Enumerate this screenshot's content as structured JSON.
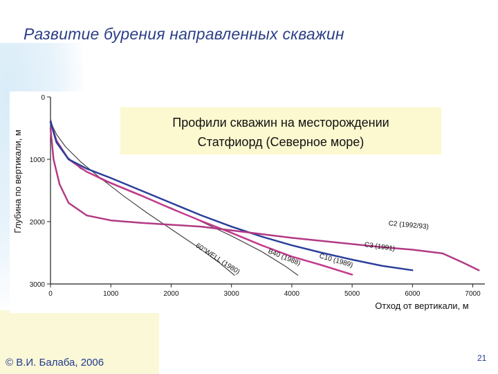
{
  "slide": {
    "title": "Развитие бурения направленных скважин",
    "footer": "© В.И. Балаба, 2006",
    "page_number": "21"
  },
  "chart_data": {
    "type": "line",
    "title": "Профили скважин на месторождении Статфиорд (Северное море)",
    "title_lines": [
      "Профили скважин на месторождении",
      "Статфиорд (Северное море)"
    ],
    "xlabel": "Отход от вертикали, м",
    "ylabel": "Глубина по вертикали, м",
    "xlim": [
      0,
      7200
    ],
    "ylim": [
      0,
      3000
    ],
    "x_inverted": false,
    "y_inverted": true,
    "x_ticks": [
      0,
      1000,
      2000,
      3000,
      4000,
      5000,
      6000,
      7000
    ],
    "y_ticks": [
      0,
      1000,
      2000,
      3000
    ],
    "grid": false,
    "series": [
      {
        "name": "60°WELL (1980)",
        "label_at": [
          2400,
          2400
        ],
        "label_angle": 33,
        "color": "#444444",
        "width": 1.2,
        "points": [
          [
            0,
            400
          ],
          [
            100,
            600
          ],
          [
            250,
            800
          ],
          [
            500,
            1040
          ],
          [
            800,
            1280
          ],
          [
            1200,
            1580
          ],
          [
            1600,
            1860
          ],
          [
            2000,
            2120
          ],
          [
            2400,
            2380
          ],
          [
            2800,
            2660
          ],
          [
            3050,
            2860
          ]
        ]
      },
      {
        "name": "B40 (1988)",
        "label_at": [
          3600,
          2500
        ],
        "label_angle": 22,
        "color": "#444444",
        "width": 1.2,
        "points": [
          [
            0,
            350
          ],
          [
            100,
            700
          ],
          [
            250,
            940
          ],
          [
            500,
            1150
          ],
          [
            900,
            1350
          ],
          [
            1400,
            1550
          ],
          [
            2000,
            1780
          ],
          [
            2500,
            2000
          ],
          [
            3000,
            2230
          ],
          [
            3500,
            2480
          ],
          [
            3900,
            2720
          ],
          [
            4100,
            2860
          ]
        ]
      },
      {
        "name": "C10 (1989)",
        "label_at": [
          4450,
          2580
        ],
        "label_angle": 16,
        "color": "#c23a8c",
        "width": 2.5,
        "points": [
          [
            0,
            400
          ],
          [
            100,
            700
          ],
          [
            300,
            1000
          ],
          [
            600,
            1200
          ],
          [
            1000,
            1380
          ],
          [
            1500,
            1580
          ],
          [
            2000,
            1790
          ],
          [
            2500,
            1990
          ],
          [
            3000,
            2180
          ],
          [
            3500,
            2380
          ],
          [
            4000,
            2560
          ],
          [
            4500,
            2700
          ],
          [
            5000,
            2850
          ]
        ]
      },
      {
        "name": "C3 (1991)",
        "label_at": [
          5200,
          2400
        ],
        "label_angle": 8,
        "color": "#2a3f9a",
        "width": 2.5,
        "points": [
          [
            0,
            400
          ],
          [
            100,
            730
          ],
          [
            300,
            1000
          ],
          [
            600,
            1150
          ],
          [
            1000,
            1300
          ],
          [
            1500,
            1500
          ],
          [
            2000,
            1700
          ],
          [
            2500,
            1900
          ],
          [
            3000,
            2080
          ],
          [
            3500,
            2240
          ],
          [
            4000,
            2380
          ],
          [
            4500,
            2500
          ],
          [
            5000,
            2610
          ],
          [
            5500,
            2710
          ],
          [
            6000,
            2780
          ]
        ]
      },
      {
        "name": "C2 (1992/93)",
        "label_at": [
          5600,
          2060
        ],
        "label_angle": 5,
        "color": "#b23a84",
        "width": 2.5,
        "points": [
          [
            0,
            500
          ],
          [
            50,
            1000
          ],
          [
            150,
            1400
          ],
          [
            300,
            1700
          ],
          [
            600,
            1900
          ],
          [
            1000,
            1980
          ],
          [
            1500,
            2020
          ],
          [
            2000,
            2050
          ],
          [
            2500,
            2080
          ],
          [
            3000,
            2140
          ],
          [
            3500,
            2200
          ],
          [
            4000,
            2260
          ],
          [
            4500,
            2310
          ],
          [
            5000,
            2360
          ],
          [
            5500,
            2410
          ],
          [
            6000,
            2450
          ],
          [
            6500,
            2510
          ],
          [
            6800,
            2640
          ],
          [
            7100,
            2780
          ]
        ]
      }
    ]
  }
}
